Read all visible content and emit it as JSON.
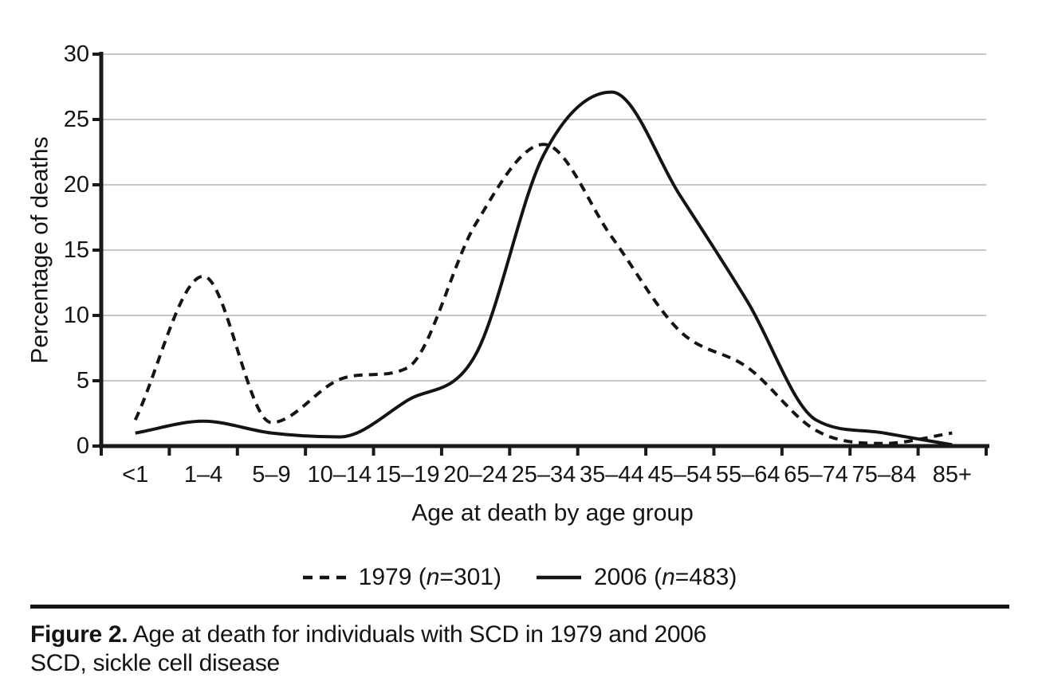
{
  "figure": {
    "caption_label": "Figure 2.",
    "caption_text": " Age at death for individuals with SCD in 1979 and 2006",
    "caption_line2": "SCD, sickle cell disease"
  },
  "legend": {
    "items": [
      {
        "prefix": "1979 (",
        "n_symbol": "n",
        "suffix": "=301)",
        "line_style": "dashed"
      },
      {
        "prefix": "2006 (",
        "n_symbol": "n",
        "suffix": "=483)",
        "line_style": "solid"
      }
    ]
  },
  "chart_data": {
    "type": "line",
    "categories": [
      "<1",
      "1–4",
      "5–9",
      "10–14",
      "15–19",
      "20–24",
      "25–34",
      "35–44",
      "45–54",
      "55–64",
      "65–74",
      "75–84",
      "85+"
    ],
    "series": [
      {
        "name": "1979 (n=301)",
        "line_style": "dashed",
        "color": "#141414",
        "values": [
          2.0,
          13.0,
          1.8,
          5.1,
          6.0,
          17.0,
          23.1,
          16.0,
          8.8,
          6.0,
          1.2,
          0.2,
          1.0
        ]
      },
      {
        "name": "2006 (n=483)",
        "line_style": "solid",
        "color": "#141414",
        "values": [
          1.0,
          1.9,
          1.0,
          0.7,
          3.5,
          7.0,
          22.3,
          27.1,
          19.2,
          11.0,
          2.0,
          1.0,
          0.1
        ]
      }
    ],
    "title": "",
    "xlabel": "Age at death by age group",
    "ylabel": "Percentage of deaths",
    "ylim": [
      0,
      30
    ],
    "yticks": [
      0,
      5,
      10,
      15,
      20,
      25,
      30
    ],
    "grid": "horizontal",
    "gridline_color": "#c8c8c8",
    "axis_color": "#1a1a1a",
    "legend_position": "bottom"
  }
}
